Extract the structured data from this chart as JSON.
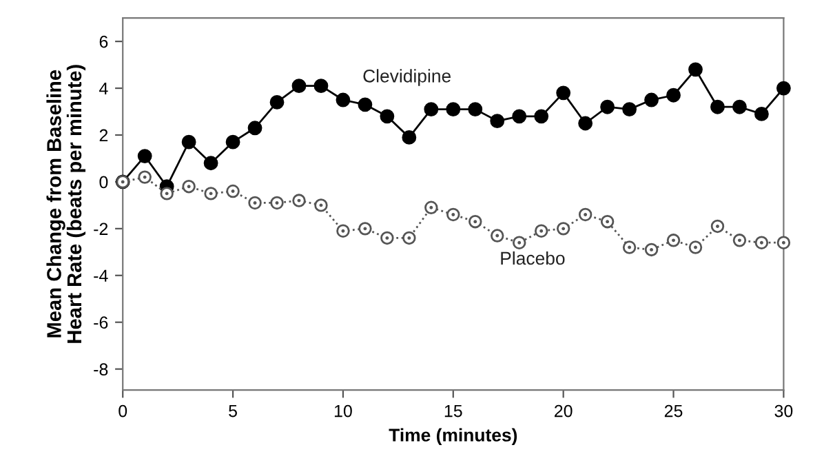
{
  "chart_data": {
    "type": "line",
    "xlabel": "Time (minutes)",
    "ylabel": "Mean Change from Baseline\nHeart Rate (beats per minute)",
    "x": [
      0,
      1,
      2,
      3,
      4,
      5,
      6,
      7,
      8,
      9,
      10,
      11,
      12,
      13,
      14,
      15,
      16,
      17,
      18,
      19,
      20,
      21,
      22,
      23,
      24,
      25,
      26,
      27,
      28,
      29,
      30
    ],
    "series": [
      {
        "name": "Clevidipine",
        "color": "#000000",
        "marker": "circle",
        "line_style": "solid",
        "values": [
          0,
          1.1,
          -0.2,
          1.7,
          0.8,
          1.7,
          2.3,
          3.4,
          4.1,
          4.1,
          3.5,
          3.3,
          2.8,
          1.9,
          3.1,
          3.1,
          3.1,
          2.6,
          2.8,
          2.8,
          3.8,
          2.5,
          3.2,
          3.1,
          3.5,
          3.7,
          4.8,
          3.2,
          3.2,
          2.9,
          4.0
        ]
      },
      {
        "name": "Placebo",
        "color": "#555555",
        "marker": "circle",
        "line_style": "dotted",
        "values": [
          0,
          0.2,
          -0.5,
          -0.2,
          -0.5,
          -0.4,
          -0.9,
          -0.9,
          -0.8,
          -1.0,
          -2.1,
          -2.0,
          -2.4,
          -2.4,
          -1.1,
          -1.4,
          -1.7,
          -2.3,
          -2.6,
          -2.1,
          -2.0,
          -1.4,
          -1.7,
          -2.8,
          -2.9,
          -2.5,
          -2.8,
          -1.9,
          -2.5,
          -2.6,
          -2.6
        ]
      }
    ],
    "xlim": [
      0,
      30
    ],
    "ylim": [
      -8.9,
      7
    ],
    "xticks": [
      0,
      5,
      10,
      15,
      20,
      25,
      30
    ],
    "yticks": [
      -8,
      -6,
      -4,
      -2,
      0,
      2,
      4,
      6
    ],
    "grid": false,
    "legend": false
  }
}
